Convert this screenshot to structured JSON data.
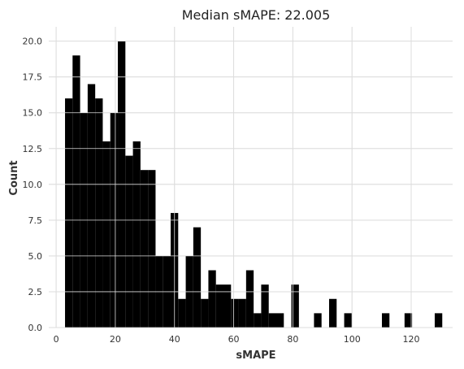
{
  "chart_data": {
    "type": "bar",
    "title": "Median sMAPE: 22.005",
    "xlabel": "sMAPE",
    "ylabel": "Count",
    "xlim": [
      -2.5,
      134
    ],
    "ylim": [
      0,
      21
    ],
    "grid": true,
    "bar_color": "#000000",
    "grid_color": "#dddddd",
    "x_ticks": [
      0,
      20,
      40,
      60,
      80,
      100,
      120
    ],
    "y_ticks": [
      0.0,
      2.5,
      5.0,
      7.5,
      10.0,
      12.5,
      15.0,
      17.5,
      20.0
    ],
    "x_tick_labels": [
      "0",
      "20",
      "40",
      "60",
      "80",
      "100",
      "120"
    ],
    "y_tick_labels": [
      "0.0",
      "2.5",
      "5.0",
      "7.5",
      "10.0",
      "12.5",
      "15.0",
      "17.5",
      "20.0"
    ],
    "bin_start": 3.0,
    "bin_width": 2.55,
    "counts": [
      16,
      19,
      15,
      17,
      16,
      13,
      15,
      20,
      12,
      13,
      11,
      11,
      5,
      5,
      8,
      2,
      5,
      7,
      2,
      4,
      3,
      3,
      2,
      2,
      4,
      1,
      3,
      1,
      1,
      0,
      3,
      0,
      0,
      1,
      0,
      2,
      0,
      1,
      0,
      0,
      0,
      0,
      1,
      0,
      0,
      1,
      0,
      0,
      0,
      1
    ]
  }
}
